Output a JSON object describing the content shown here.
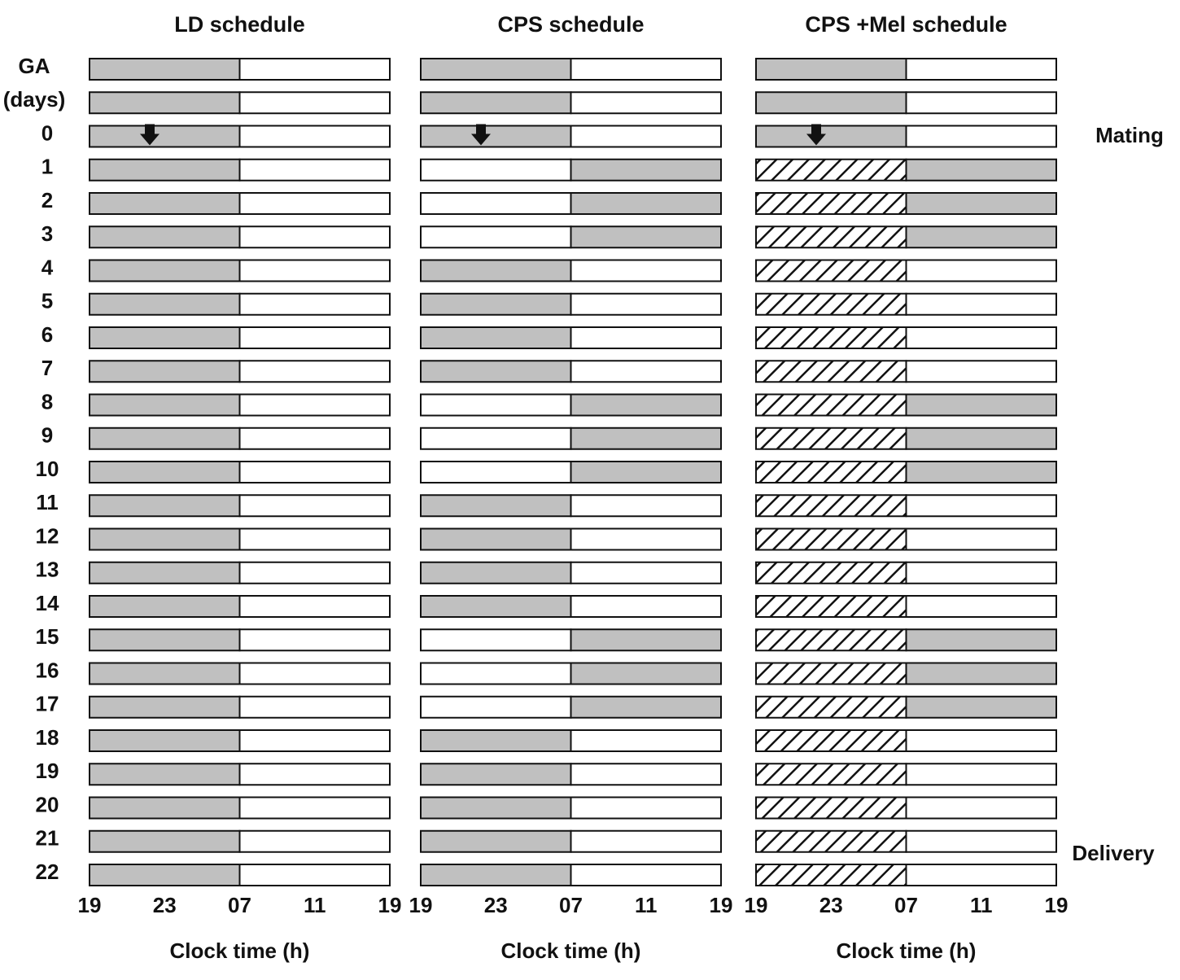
{
  "row_labels": [
    "GA",
    "(days)",
    "0",
    "1",
    "2",
    "3",
    "4",
    "5",
    "6",
    "7",
    "8",
    "9",
    "10",
    "11",
    "12",
    "13",
    "14",
    "15",
    "16",
    "17",
    "18",
    "19",
    "20",
    "21",
    "22"
  ],
  "panels": [
    {
      "title": "LD schedule",
      "x_ticks": [
        "19",
        "23",
        "07",
        "11",
        "19"
      ],
      "x_label": "Clock time (h)",
      "rows": [
        "GW",
        "GW",
        "GW",
        "GW",
        "GW",
        "GW",
        "GW",
        "GW",
        "GW",
        "GW",
        "GW",
        "GW",
        "GW",
        "GW",
        "GW",
        "GW",
        "GW",
        "GW",
        "GW",
        "GW",
        "GW",
        "GW",
        "GW",
        "GW",
        "GW"
      ]
    },
    {
      "title": "CPS schedule",
      "x_ticks": [
        "19",
        "23",
        "07",
        "11",
        "19"
      ],
      "x_label": "Clock time (h)",
      "rows": [
        "GW",
        "GW",
        "GW",
        "WG",
        "WG",
        "WG",
        "GW",
        "GW",
        "GW",
        "GW",
        "WG",
        "WG",
        "WG",
        "GW",
        "GW",
        "GW",
        "GW",
        "WG",
        "WG",
        "WG",
        "GW",
        "GW",
        "GW",
        "GW",
        "GW"
      ]
    },
    {
      "title": "CPS +Mel  schedule",
      "x_ticks": [
        "19",
        "23",
        "07",
        "11",
        "19"
      ],
      "x_label": "Clock time (h)",
      "rows": [
        "GW",
        "GW",
        "GW",
        "HG",
        "HG",
        "HG",
        "HW",
        "HW",
        "HW",
        "HW",
        "HG",
        "HG",
        "HG",
        "HW",
        "HW",
        "HW",
        "HW",
        "HG",
        "HG",
        "HG",
        "HW",
        "HW",
        "HW",
        "HW",
        "HW"
      ]
    }
  ],
  "annotations": {
    "mating": "Mating",
    "delivery": "Delivery"
  }
}
